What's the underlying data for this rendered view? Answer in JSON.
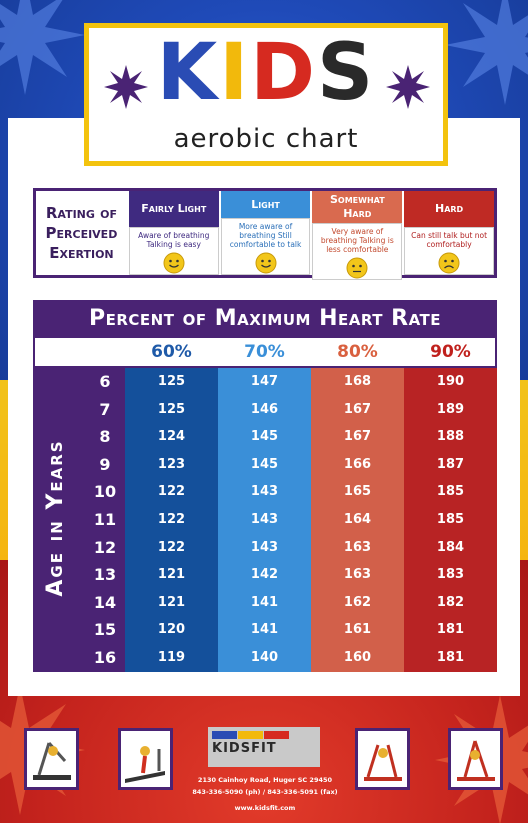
{
  "title": {
    "kids_letters": [
      "K",
      "I",
      "D",
      "S"
    ],
    "subtitle": "aerobic chart"
  },
  "exertion": {
    "label": "Rating of Perceived Exertion",
    "levels": [
      {
        "name": "Fairly Light",
        "description": "Aware of breathing Talking is easy",
        "color": "#3f2a80",
        "face": "happy"
      },
      {
        "name": "Light",
        "description": "More aware of breathing Still comfortable to talk",
        "color": "#3a8fd8",
        "face": "happy"
      },
      {
        "name": "Somewhat Hard",
        "description": "Very aware of breathing Talking is less comfortable",
        "color": "#d96a4f",
        "face": "neutral"
      },
      {
        "name": "Hard",
        "description": "Can still talk but not comfortably",
        "color": "#bf2a24",
        "face": "sad"
      }
    ]
  },
  "heart_rate": {
    "title": "Percent of Maximum Heart Rate",
    "age_label": "Age in Years",
    "percents": [
      {
        "label": "60%",
        "color": "#1f5aa8",
        "bg": "#14509b"
      },
      {
        "label": "70%",
        "color": "#3a8fd8",
        "bg": "#3a8fd8"
      },
      {
        "label": "80%",
        "color": "#d9603f",
        "bg": "#d2604a"
      },
      {
        "label": "90%",
        "color": "#c0211d",
        "bg": "#b82324"
      }
    ],
    "rows": [
      {
        "age": "6",
        "values": [
          "125",
          "147",
          "168",
          "190"
        ]
      },
      {
        "age": "7",
        "values": [
          "125",
          "146",
          "167",
          "189"
        ]
      },
      {
        "age": "8",
        "values": [
          "124",
          "145",
          "167",
          "188"
        ]
      },
      {
        "age": "9",
        "values": [
          "123",
          "145",
          "166",
          "187"
        ]
      },
      {
        "age": "10",
        "values": [
          "122",
          "143",
          "165",
          "185"
        ]
      },
      {
        "age": "11",
        "values": [
          "122",
          "143",
          "164",
          "185"
        ]
      },
      {
        "age": "12",
        "values": [
          "122",
          "143",
          "163",
          "184"
        ]
      },
      {
        "age": "13",
        "values": [
          "121",
          "142",
          "163",
          "183"
        ]
      },
      {
        "age": "14",
        "values": [
          "121",
          "141",
          "162",
          "182"
        ]
      },
      {
        "age": "15",
        "values": [
          "120",
          "141",
          "161",
          "181"
        ]
      },
      {
        "age": "16",
        "values": [
          "119",
          "140",
          "160",
          "181"
        ]
      }
    ]
  },
  "footer": {
    "logo": "KIDSFIT",
    "address": "2130 Cainhoy Road, Huger SC 29450",
    "phone": "843-336-5090 (ph) / 843-336-5091 (fax)",
    "website": "www.kidsfit.com"
  }
}
